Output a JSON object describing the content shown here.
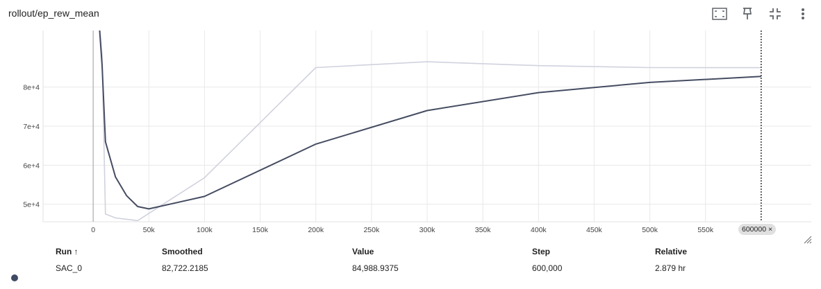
{
  "header": {
    "title": "rollout/ep_rew_mean",
    "tools": [
      "fit-domain-icon",
      "pin-icon",
      "fullscreen-exit-icon",
      "more-vert-icon"
    ]
  },
  "chart_data": {
    "type": "line",
    "title": "rollout/ep_rew_mean",
    "xlabel": "",
    "ylabel": "",
    "xlim": [
      -45000,
      645000
    ],
    "ylim": [
      45500,
      94500
    ],
    "x_ticks": [
      {
        "v": 0,
        "label": "0"
      },
      {
        "v": 50000,
        "label": "50k"
      },
      {
        "v": 100000,
        "label": "100k"
      },
      {
        "v": 150000,
        "label": "150k"
      },
      {
        "v": 200000,
        "label": "200k"
      },
      {
        "v": 250000,
        "label": "250k"
      },
      {
        "v": 300000,
        "label": "300k"
      },
      {
        "v": 350000,
        "label": "350k"
      },
      {
        "v": 400000,
        "label": "400k"
      },
      {
        "v": 450000,
        "label": "450k"
      },
      {
        "v": 500000,
        "label": "500k"
      },
      {
        "v": 550000,
        "label": "550k"
      }
    ],
    "y_ticks": [
      {
        "v": 50000,
        "label": "5e+4"
      },
      {
        "v": 60000,
        "label": "6e+4"
      },
      {
        "v": 70000,
        "label": "7e+4"
      },
      {
        "v": 80000,
        "label": "8e+4"
      }
    ],
    "grid": true,
    "series": [
      {
        "role": "value",
        "color": "#d0d2de",
        "x": [
          4000,
          8000,
          11000,
          20000,
          40000,
          100000,
          200000,
          300000,
          400000,
          500000,
          600000
        ],
        "y": [
          102000,
          88000,
          47500,
          46500,
          45800,
          56800,
          85000,
          86500,
          85500,
          85000,
          84989
        ]
      },
      {
        "role": "smoothed",
        "color": "#454c61",
        "x": [
          4000,
          8000,
          11000,
          20000,
          30000,
          40000,
          50000,
          100000,
          200000,
          300000,
          400000,
          500000,
          600000
        ],
        "y": [
          102000,
          85500,
          66000,
          57000,
          52200,
          49400,
          48800,
          52000,
          65400,
          74000,
          78600,
          81200,
          82722
        ]
      }
    ],
    "hover": {
      "x": 600000,
      "label": "600000"
    }
  },
  "badge": {
    "label": "600000",
    "close": "×"
  },
  "table": {
    "columns": [
      {
        "key": "run",
        "label": "Run ↑"
      },
      {
        "key": "smoothed",
        "label": "Smoothed"
      },
      {
        "key": "value",
        "label": "Value"
      },
      {
        "key": "step",
        "label": "Step"
      },
      {
        "key": "relative",
        "label": "Relative"
      }
    ],
    "row": {
      "run": "SAC_0",
      "smoothed": "82,722.2185",
      "value": "84,988.9375",
      "step": "600,000",
      "relative": "2.879 hr",
      "color": "#3f4a63"
    }
  }
}
